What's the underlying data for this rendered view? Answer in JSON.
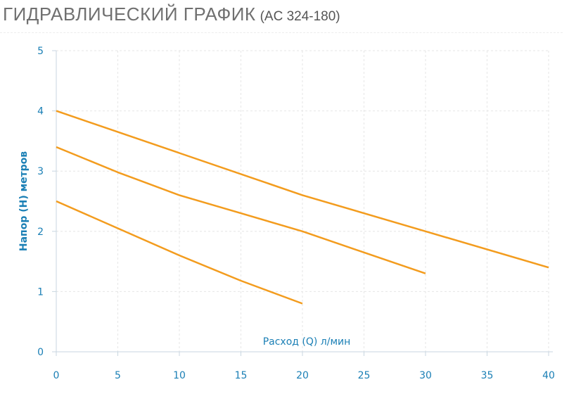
{
  "header": {
    "title": "ГИДРАВЛИЧЕСКИЙ ГРАФИК",
    "model": "(AC 324-180)"
  },
  "colors": {
    "series": "#f39c1e",
    "axis_text": "#1a7fb5",
    "grid": "#e6e6e6",
    "axis_line": "#c8d6e0"
  },
  "chart_data": {
    "type": "line",
    "title": "ГИДРАВЛИЧЕСКИЙ ГРАФИК (AC 324-180)",
    "xlabel": "Расход (Q) л/мин",
    "ylabel": "Напор (H) метров",
    "xlim": [
      0,
      40
    ],
    "ylim": [
      0,
      5
    ],
    "xticks": [
      0,
      5,
      10,
      15,
      20,
      25,
      30,
      35,
      40
    ],
    "yticks": [
      0,
      1,
      2,
      3,
      4,
      5
    ],
    "grid": true,
    "legend": "none",
    "series": [
      {
        "x": [
          0,
          10,
          20,
          30,
          40
        ],
        "y": [
          4.0,
          3.3,
          2.6,
          2.0,
          1.4
        ]
      },
      {
        "x": [
          0,
          5,
          10,
          15,
          20,
          25,
          30
        ],
        "y": [
          3.4,
          2.98,
          2.6,
          2.3,
          2.0,
          1.65,
          1.3
        ]
      },
      {
        "x": [
          0,
          5,
          10,
          15,
          20
        ],
        "y": [
          2.5,
          2.05,
          1.6,
          1.18,
          0.8
        ]
      }
    ]
  }
}
